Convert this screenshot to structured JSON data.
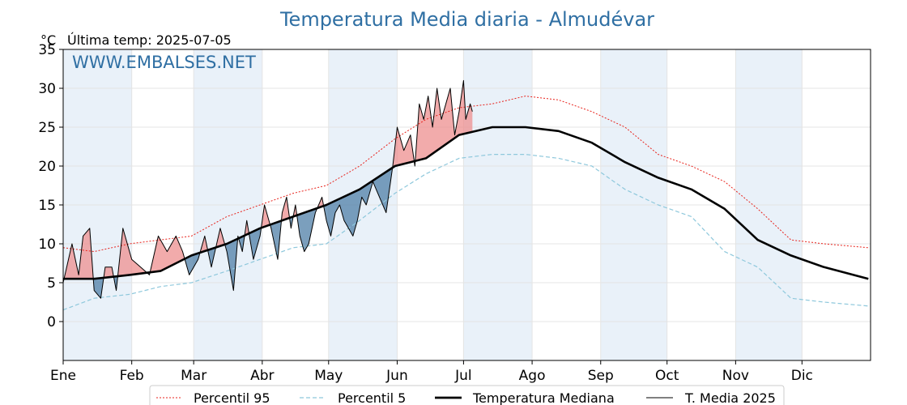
{
  "chart_data": {
    "type": "line",
    "title": "Temperatura Media diaria - Almudévar",
    "unit_label": "°C",
    "subtitle": "Última temp: 2025-07-05",
    "watermark": "WWW.EMBALSES.NET",
    "ylim": [
      -5,
      35
    ],
    "yticks": [
      "0",
      "5",
      "10",
      "15",
      "20",
      "25",
      "30",
      "35"
    ],
    "ytick_values": [
      0,
      5,
      10,
      15,
      20,
      25,
      30,
      35
    ],
    "xlim": [
      1,
      366
    ],
    "months": [
      {
        "label": "Ene",
        "day": 1
      },
      {
        "label": "Feb",
        "day": 32
      },
      {
        "label": "Mar",
        "day": 60
      },
      {
        "label": "Abr",
        "day": 91
      },
      {
        "label": "May",
        "day": 121
      },
      {
        "label": "Jun",
        "day": 152
      },
      {
        "label": "Jul",
        "day": 182
      },
      {
        "label": "Ago",
        "day": 213
      },
      {
        "label": "Sep",
        "day": 244
      },
      {
        "label": "Oct",
        "day": 274
      },
      {
        "label": "Nov",
        "day": 305
      },
      {
        "label": "Dic",
        "day": 335
      }
    ],
    "grid": true,
    "legend_position": "bottom",
    "colors": {
      "p95": "#e8231c",
      "p5": "#8ec8dc",
      "median": "#000000",
      "current": "#000000",
      "above": "#ee8f8f",
      "below": "#4f7fa7",
      "band": "#e9f1f9",
      "text": "#2f6fa3"
    },
    "series": [
      {
        "name": "Percentil 95",
        "key": "p95",
        "style": "dotted",
        "x": [
          1,
          15,
          31,
          45,
          59,
          75,
          90,
          105,
          120,
          135,
          151,
          165,
          180,
          195,
          210,
          225,
          240,
          255,
          270,
          285,
          300,
          315,
          330,
          345,
          365
        ],
        "y": [
          9.5,
          9,
          10,
          10.5,
          11,
          13.5,
          15,
          16.5,
          17.5,
          20,
          23.5,
          26,
          27.5,
          28,
          29,
          28.5,
          27,
          25,
          21.5,
          20,
          18,
          14.5,
          10.5,
          10,
          9.5
        ]
      },
      {
        "name": "Percentil 5",
        "key": "p5",
        "style": "dashed",
        "x": [
          1,
          15,
          31,
          45,
          59,
          75,
          90,
          105,
          120,
          135,
          151,
          165,
          180,
          195,
          210,
          225,
          240,
          255,
          270,
          285,
          300,
          315,
          330,
          345,
          365
        ],
        "y": [
          1.5,
          3,
          3.5,
          4.5,
          5,
          6.5,
          8,
          9.5,
          10,
          13,
          16.5,
          19,
          21,
          21.5,
          21.5,
          21,
          20,
          17,
          15,
          13.5,
          9,
          7,
          3,
          2.5,
          2
        ]
      },
      {
        "name": "Temperatura Mediana",
        "key": "median",
        "style": "solid-thick",
        "x": [
          1,
          15,
          31,
          45,
          59,
          75,
          90,
          105,
          120,
          135,
          151,
          165,
          180,
          195,
          210,
          225,
          240,
          255,
          270,
          285,
          300,
          315,
          330,
          345,
          365
        ],
        "y": [
          5.5,
          5.5,
          6,
          6.5,
          8.5,
          10,
          12,
          13.5,
          15,
          17,
          20,
          21,
          24,
          25,
          25,
          24.5,
          23,
          20.5,
          18.5,
          17,
          14.5,
          10.5,
          8.5,
          7,
          5.5
        ]
      },
      {
        "name": "T. Media 2025",
        "key": "current",
        "style": "solid-thin",
        "x": [
          1,
          5,
          8,
          10,
          13,
          15,
          18,
          20,
          23,
          25,
          28,
          32,
          36,
          40,
          44,
          48,
          52,
          55,
          58,
          62,
          65,
          68,
          72,
          75,
          78,
          80,
          82,
          84,
          87,
          90,
          92,
          95,
          98,
          100,
          102,
          104,
          106,
          108,
          110,
          112,
          115,
          118,
          120,
          122,
          124,
          126,
          128,
          130,
          132,
          134,
          136,
          138,
          141,
          144,
          147,
          150,
          152,
          155,
          158,
          160,
          162,
          164,
          166,
          168,
          170,
          172,
          174,
          176,
          178,
          180,
          182,
          183,
          184,
          185,
          186
        ],
        "y": [
          5,
          10,
          6,
          11,
          12,
          4,
          3,
          7,
          7,
          4,
          12,
          8,
          7,
          6,
          11,
          9,
          11,
          9,
          6,
          8,
          11,
          7,
          12,
          9,
          4,
          11,
          9,
          13,
          8,
          11,
          15,
          12,
          8,
          14,
          16,
          12,
          15,
          11,
          9,
          10,
          14,
          16,
          13,
          11,
          14,
          15,
          13,
          12,
          11,
          13,
          16,
          15,
          18,
          16,
          14,
          20,
          25,
          22,
          24,
          20,
          28,
          26,
          29,
          25,
          30,
          26,
          28,
          30,
          24,
          27,
          31,
          26,
          27,
          28,
          27
        ]
      }
    ]
  }
}
